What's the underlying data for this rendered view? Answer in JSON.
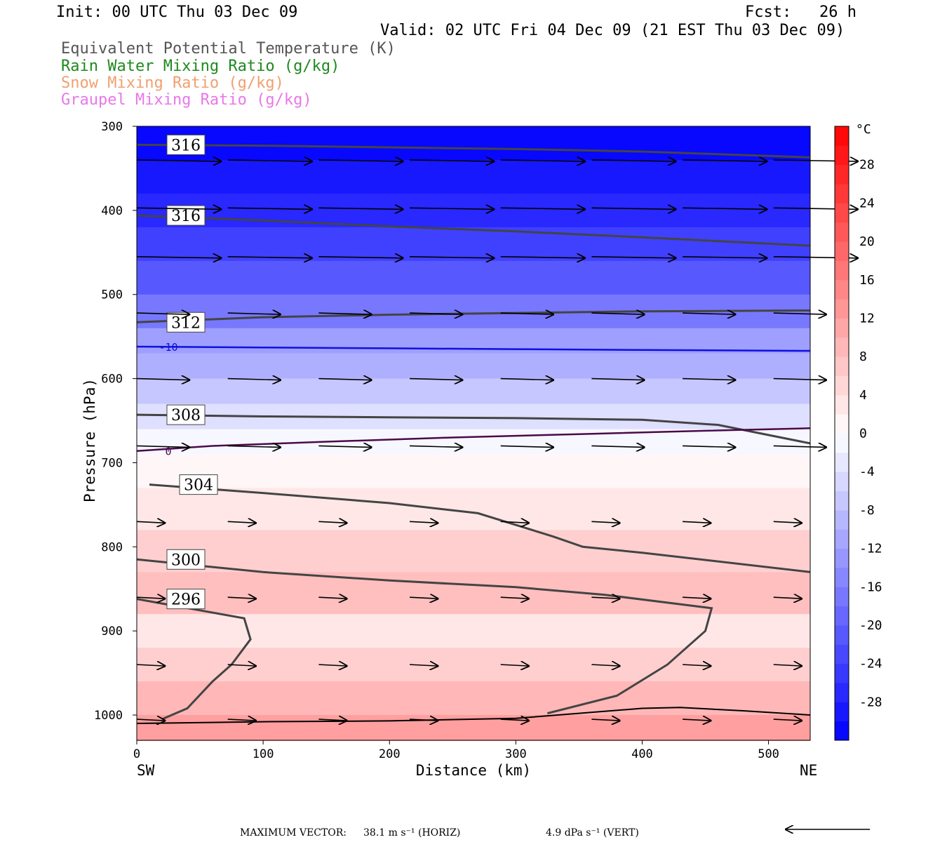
{
  "header": {
    "init": "Init: 00 UTC Thu 03 Dec 09",
    "fcst": "Fcst:   26 h",
    "valid": "Valid: 02 UTC Fri 04 Dec 09 (21 EST Thu 03 Dec 09)"
  },
  "fields": [
    {
      "label": "Equivalent Potential Temperature (K)",
      "color": "#555555"
    },
    {
      "label": "Rain Water Mixing Ratio (g/kg)",
      "color": "#1e8a1e"
    },
    {
      "label": "Snow Mixing Ratio (g/kg)",
      "color": "#f0a070"
    },
    {
      "label": "Graupel Mixing Ratio (g/kg)",
      "color": "#e878e8"
    }
  ],
  "footer": {
    "max_vector_label": "MAXIMUM VECTOR:",
    "max_vector_horiz": "38.1 m s⁻¹ (HORIZ)",
    "max_vector_vert": "4.9 dPa s⁻¹ (VERT)"
  },
  "chart_data": {
    "type": "heatmap",
    "xlabel": "Distance (km)",
    "ylabel": "Pressure (hPa)",
    "xlim": [
      0,
      533
    ],
    "ylim": [
      1030,
      300
    ],
    "x_ticks": [
      0,
      100,
      200,
      300,
      400,
      500
    ],
    "y_ticks": [
      300,
      400,
      500,
      600,
      700,
      800,
      900,
      1000
    ],
    "x_end_labels": {
      "left": "SW",
      "right": "NE"
    },
    "colorbar": {
      "unit": "°C",
      "levels": [
        -32,
        -30,
        -28,
        -26,
        -24,
        -22,
        -20,
        -18,
        -16,
        -14,
        -12,
        -10,
        -8,
        -6,
        -4,
        -2,
        0,
        2,
        4,
        6,
        8,
        10,
        12,
        14,
        16,
        18,
        20,
        22,
        24,
        26,
        28,
        30,
        32
      ],
      "tick_labels": [
        28,
        24,
        20,
        16,
        12,
        8,
        4,
        0,
        -4,
        -8,
        -12,
        -16,
        -20,
        -24,
        -28
      ]
    },
    "temperature_bands": [
      {
        "p": 300,
        "t": -31
      },
      {
        "p": 340,
        "t": -29
      },
      {
        "p": 380,
        "t": -27
      },
      {
        "p": 420,
        "t": -24
      },
      {
        "p": 460,
        "t": -21
      },
      {
        "p": 500,
        "t": -17
      },
      {
        "p": 540,
        "t": -12
      },
      {
        "p": 570,
        "t": -10
      },
      {
        "p": 600,
        "t": -7
      },
      {
        "p": 630,
        "t": -4
      },
      {
        "p": 660,
        "t": -1
      },
      {
        "p": 690,
        "t": 1
      },
      {
        "p": 730,
        "t": 3
      },
      {
        "p": 780,
        "t": 6
      },
      {
        "p": 830,
        "t": 8
      },
      {
        "p": 880,
        "t": 3
      },
      {
        "p": 920,
        "t": 6
      },
      {
        "p": 960,
        "t": 9
      },
      {
        "p": 1000,
        "t": 12
      },
      {
        "p": 1030,
        "t": 14
      }
    ],
    "theta_e_contours": [
      {
        "value": 316,
        "points": [
          [
            0,
            322
          ],
          [
            100,
            323
          ],
          [
            200,
            325
          ],
          [
            300,
            327
          ],
          [
            400,
            330
          ],
          [
            533,
            337
          ]
        ]
      },
      {
        "value": 316,
        "points": [
          [
            0,
            406
          ],
          [
            100,
            412
          ],
          [
            200,
            419
          ],
          [
            300,
            425
          ],
          [
            400,
            432
          ],
          [
            533,
            442
          ]
        ]
      },
      {
        "value": 312,
        "points": [
          [
            0,
            533
          ],
          [
            100,
            527
          ],
          [
            200,
            524
          ],
          [
            300,
            522
          ],
          [
            400,
            520
          ],
          [
            533,
            519
          ]
        ]
      },
      {
        "value": 308,
        "points": [
          [
            0,
            643
          ],
          [
            100,
            645
          ],
          [
            200,
            646
          ],
          [
            300,
            647
          ],
          [
            400,
            649
          ],
          [
            460,
            655
          ],
          [
            533,
            677
          ]
        ]
      },
      {
        "value": 304,
        "points": [
          [
            10,
            726
          ],
          [
            100,
            736
          ],
          [
            200,
            748
          ],
          [
            270,
            760
          ],
          [
            330,
            788
          ],
          [
            353,
            800
          ],
          [
            400,
            807
          ],
          [
            533,
            830
          ]
        ]
      },
      {
        "value": 300,
        "points": [
          [
            0,
            815
          ],
          [
            100,
            830
          ],
          [
            200,
            840
          ],
          [
            300,
            848
          ],
          [
            370,
            857
          ],
          [
            455,
            873
          ],
          [
            450,
            900
          ],
          [
            420,
            940
          ],
          [
            380,
            977
          ],
          [
            325,
            998
          ]
        ]
      },
      {
        "value": 296,
        "points": [
          [
            0,
            862
          ],
          [
            85,
            885
          ],
          [
            90,
            910
          ],
          [
            75,
            940
          ],
          [
            60,
            960
          ],
          [
            40,
            992
          ],
          [
            20,
            1005
          ]
        ]
      }
    ],
    "temperature_contours": [
      {
        "value": -10,
        "points": [
          [
            0,
            562
          ],
          [
            100,
            563
          ],
          [
            200,
            564
          ],
          [
            300,
            565
          ],
          [
            400,
            566
          ],
          [
            533,
            567
          ]
        ]
      },
      {
        "value": 0,
        "points": [
          [
            0,
            686
          ],
          [
            60,
            680
          ],
          [
            150,
            675
          ],
          [
            250,
            670
          ],
          [
            350,
            666
          ],
          [
            450,
            662
          ],
          [
            533,
            659
          ]
        ]
      }
    ],
    "surface": [
      [
        0,
        1010
      ],
      [
        100,
        1008
      ],
      [
        200,
        1007
      ],
      [
        300,
        1004
      ],
      [
        350,
        998
      ],
      [
        400,
        992
      ],
      [
        430,
        991
      ],
      [
        480,
        995
      ],
      [
        533,
        1000
      ]
    ],
    "wind_rows": [
      340,
      397,
      455,
      522,
      600,
      680,
      770,
      860,
      940,
      1005
    ]
  }
}
